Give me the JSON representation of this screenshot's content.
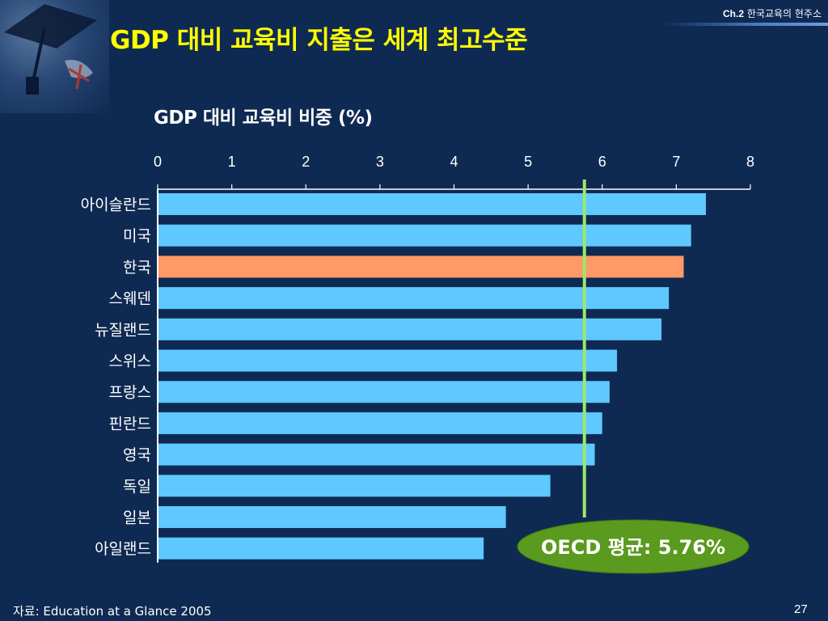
{
  "header": {
    "chapter": "Ch.2",
    "chapter_title": "한국교육의 현주소"
  },
  "title": "GDP 대비 교육비 지출은 세계 최고수준",
  "source": {
    "label": "자료",
    "text": ": Education at a Glance 2005"
  },
  "page_number": "27",
  "colors": {
    "background": "#0f2a52",
    "title": "#ffff00",
    "bar": "#5ec8ff",
    "highlight_bar": "#ff9966",
    "average_line": "#9be86b",
    "average_badge": "#5a9a1e"
  },
  "chart_data": {
    "type": "bar",
    "orientation": "horizontal",
    "title": "GDP 대비 교육비 비중 (%)",
    "xlabel": "",
    "ylabel": "",
    "xlim": [
      0,
      8
    ],
    "xticks": [
      "0",
      "1",
      "2",
      "3",
      "4",
      "5",
      "6",
      "7",
      "8"
    ],
    "axis_position": "top",
    "grid": false,
    "categories": [
      "아이슬란드",
      "미국",
      "한국",
      "스웨덴",
      "뉴질랜드",
      "스위스",
      "프랑스",
      "핀란드",
      "영국",
      "독일",
      "일본",
      "아일랜드"
    ],
    "values": [
      7.4,
      7.2,
      7.1,
      6.9,
      6.8,
      6.2,
      6.1,
      6.0,
      5.9,
      5.3,
      4.7,
      4.4
    ],
    "highlight": "한국",
    "reference_line": {
      "value": 5.76,
      "label": "OECD 평균: 5.76%"
    }
  }
}
